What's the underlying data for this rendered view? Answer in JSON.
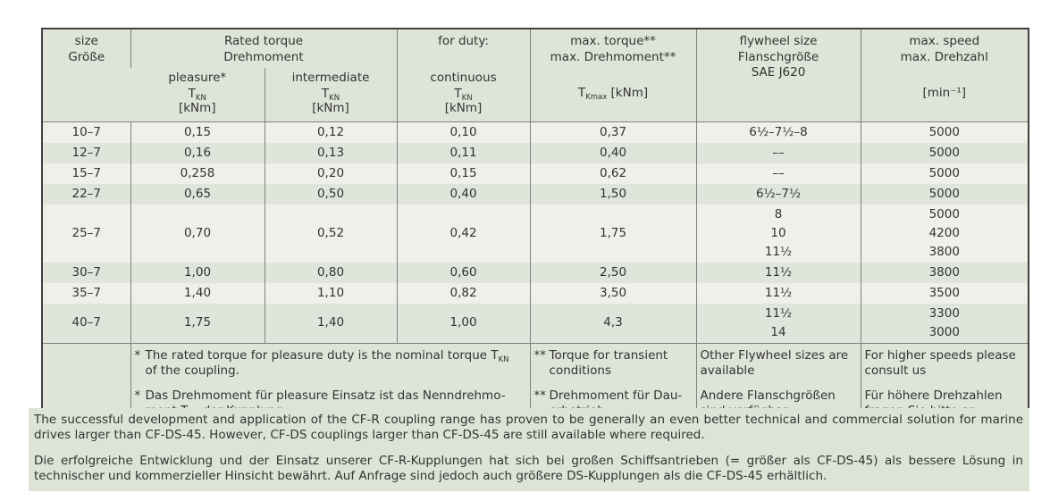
{
  "colors": {
    "header_bg": "#dee4d8",
    "row_light": "#eef0e9",
    "row_dark": "#dfe5da",
    "note_bg": "#dde4d6",
    "border_dark": "#3f3f3f",
    "border_light": "#7e837b",
    "text": "#333333"
  },
  "table": {
    "header": {
      "size_en": "size",
      "size_de": "Größe",
      "rated_torque_en": "Rated torque",
      "rated_torque_de": "Drehmoment",
      "for_duty": "for duty:",
      "duty_pleasure": "pleasure*",
      "duty_intermediate": "intermediate",
      "duty_continuous": "continuous",
      "torque_symbol": "T",
      "torque_symbol_sub": "KN",
      "torque_unit": "[kNm]",
      "max_torque_en": "max. torque**",
      "max_torque_de": "max. Drehmoment**",
      "max_torque_symbol": "T",
      "max_torque_symbol_sub": "Kmax",
      "max_torque_unit": "[kNm]",
      "flywheel_en": "flywheel size",
      "flywheel_de": "Flanschgröße",
      "flywheel_standard": "SAE J620",
      "max_speed_en": "max. speed",
      "max_speed_de": "max. Drehzahl",
      "max_speed_unit": "[min⁻¹]"
    },
    "rows": [
      {
        "cells": [
          [
            "10–7"
          ],
          [
            "0,15"
          ],
          [
            "0,12"
          ],
          [
            "0,10"
          ],
          [
            "0,37"
          ],
          [
            "6½–7½–8"
          ],
          [
            "5000"
          ]
        ]
      },
      {
        "cells": [
          [
            "12–7"
          ],
          [
            "0,16"
          ],
          [
            "0,13"
          ],
          [
            "0,11"
          ],
          [
            "0,40"
          ],
          [
            "––"
          ],
          [
            "5000"
          ]
        ]
      },
      {
        "cells": [
          [
            "15–7"
          ],
          [
            "0,258"
          ],
          [
            "0,20"
          ],
          [
            "0,15"
          ],
          [
            "0,62"
          ],
          [
            "––"
          ],
          [
            "5000"
          ]
        ]
      },
      {
        "cells": [
          [
            "22–7"
          ],
          [
            "0,65"
          ],
          [
            "0,50"
          ],
          [
            "0,40"
          ],
          [
            "1,50"
          ],
          [
            "6½–7½"
          ],
          [
            "5000"
          ]
        ]
      },
      {
        "cells": [
          [
            "25–7"
          ],
          [
            "0,70"
          ],
          [
            "0,52"
          ],
          [
            "0,42"
          ],
          [
            "1,75"
          ],
          [
            "8",
            "10",
            "11½"
          ],
          [
            "5000",
            "4200",
            "3800"
          ]
        ]
      },
      {
        "cells": [
          [
            "30–7"
          ],
          [
            "1,00"
          ],
          [
            "0,80"
          ],
          [
            "0,60"
          ],
          [
            "2,50"
          ],
          [
            "11½"
          ],
          [
            "3800"
          ]
        ]
      },
      {
        "cells": [
          [
            "35–7"
          ],
          [
            "1,40"
          ],
          [
            "1,10"
          ],
          [
            "0,82"
          ],
          [
            "3,50"
          ],
          [
            "11½"
          ],
          [
            "3500"
          ]
        ]
      },
      {
        "cells": [
          [
            "40–7"
          ],
          [
            "1,75"
          ],
          [
            "1,40"
          ],
          [
            "1,00"
          ],
          [
            "4,3"
          ],
          [
            "11½",
            "14"
          ],
          [
            "3300",
            "3000"
          ]
        ]
      }
    ],
    "footnotes": {
      "star": "*",
      "dstar": "**",
      "torque_en_l1": "The rated torque for pleasure duty is the nominal torque T",
      "torque_en_sub": "KN",
      "torque_en_l2": "of the coupling.",
      "torque_de_l1": "Das Drehmoment für pleasure Einsatz ist das Nenndrehmo-",
      "torque_de_l2a": "ment T",
      "torque_de_sub": "KN",
      "torque_de_l2b": " der Kupplung.",
      "max_torque_en": "Torque for transient conditions",
      "max_torque_de": "Drehmoment für Dau­erbetrieb",
      "flywheel_en": "Other Flywheel sizes are available",
      "flywheel_de": "Andere Flanschgrößen sind verfügbar",
      "speed_en": "For higher speeds please consult us",
      "speed_de": "Für höhere Drehzahlen fragen Sie bitte an"
    }
  },
  "notes": {
    "en": "The successful development and application of the CF-R coupling range has proven to be generally an even better technical and commercial solution for marine drives larger than CF-DS-45. However, CF-DS couplings larger than CF-DS-45 are still available where required.",
    "de": "Die erfolgreiche Entwicklung und der Einsatz unserer CF-R-Kupplungen hat sich bei großen Schiffsantrieben (= größer als CF-DS-45) als bessere Lösung in technischer und kommerzieller Hinsicht bewährt. Auf Anfrage sind jedoch auch größere DS-Kupplungen als die CF-DS-45 erhältlich."
  }
}
